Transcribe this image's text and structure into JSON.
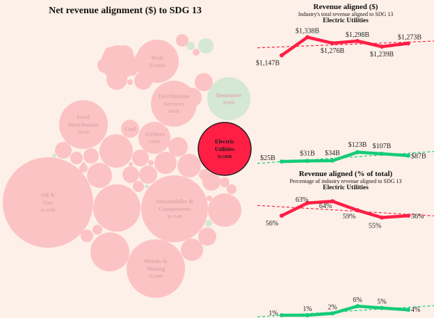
{
  "chart_data": [
    {
      "type": "bubble",
      "title": "Net revenue alignment ($) to SDG 13",
      "selected": "Electric Utilities",
      "colors": {
        "negative": "#fcc3c4",
        "positive": "#d4e8d4",
        "selected": "#ff1f45"
      },
      "bubbles": [
        {
          "name": "Oil & Gas",
          "value": "$3,109B",
          "sign": "negative"
        },
        {
          "name": "Automobiles & Components",
          "value": "$1,714B",
          "sign": "negative"
        },
        {
          "name": "Metals & Mining",
          "value": "$1,300B",
          "sign": "negative"
        },
        {
          "name": "Electric Utilities",
          "value": "$1,186B",
          "sign": "negative"
        },
        {
          "name": "Food Distribution",
          "value": "$932B",
          "sign": "negative"
        },
        {
          "name": "Distribution Services",
          "value": "$863B",
          "sign": "negative"
        },
        {
          "name": "Insurance",
          "value": "$743B",
          "sign": "positive"
        },
        {
          "name": "Real Estate",
          "value": "",
          "sign": "negative"
        },
        {
          "name": "Airlines",
          "value": "$386B",
          "sign": "negative"
        },
        {
          "name": "Coal",
          "value": "",
          "sign": "negative"
        }
      ]
    },
    {
      "type": "line",
      "title": "Revenue aligned ($)",
      "subtitle": "Industry's total revenue aligned to SDG 13",
      "subject": "Electric Utilities",
      "unit": "B",
      "series": [
        {
          "color": "#ff1f45",
          "values": [
            1147,
            1338,
            1276,
            1298,
            1239,
            1273
          ],
          "labels": [
            "$1,147B",
            "$1,338B",
            "$1,276B",
            "$1,298B",
            "$1,239B",
            "$1,273B"
          ]
        },
        {
          "color": "#14cc78",
          "values": [
            25,
            31,
            34,
            123,
            107,
            87
          ],
          "labels": [
            "$25B",
            "$31B",
            "$34B",
            "$123B",
            "$107B",
            "$87B"
          ]
        }
      ],
      "trendlines": "dashed"
    },
    {
      "type": "line",
      "title": "Revenue aligned (% of total)",
      "subtitle": "Percentage of industry revenue aligned to SDG 13",
      "subject": "Electric Utilities",
      "unit": "%",
      "series": [
        {
          "color": "#ff1f45",
          "values": [
            56,
            63,
            64,
            59,
            55,
            56
          ],
          "labels": [
            "56%",
            "63%",
            "64%",
            "59%",
            "55%",
            "56%"
          ]
        },
        {
          "color": "#14cc78",
          "values": [
            1,
            1,
            2,
            6,
            5,
            4
          ],
          "labels": [
            "1%",
            "1%",
            "2%",
            "6%",
            "5%",
            "4%"
          ]
        }
      ],
      "trendlines": "dashed"
    }
  ]
}
